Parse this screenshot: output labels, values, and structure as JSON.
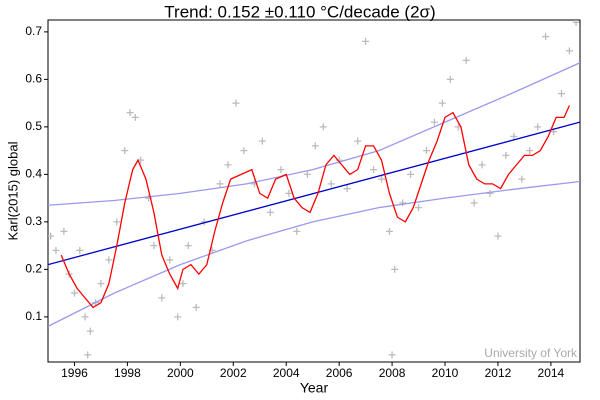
{
  "chart_data": {
    "type": "line",
    "title": "Trend: 0.152 ±0.110 °C/decade (2σ)",
    "x_label": "Year",
    "y_label": "Karl(2015) global",
    "annotation": "University of York",
    "xlim": [
      1995,
      2015.1
    ],
    "xticks": [
      1996,
      1998,
      2000,
      2002,
      2004,
      2006,
      2008,
      2010,
      2012,
      2014
    ],
    "ylim": [
      0.005,
      0.725
    ],
    "yticks": [
      0.1,
      0.2,
      0.3,
      0.4,
      0.5,
      0.6,
      0.7
    ],
    "series": [
      {
        "style": "markers",
        "color": "#bbbbbb",
        "x": [
          1995.1,
          1995.3,
          1995.6,
          1995.8,
          1996.0,
          1996.2,
          1996.4,
          1996.5,
          1996.6,
          1996.8,
          1997.0,
          1997.3,
          1997.6,
          1997.9,
          1998.1,
          1998.3,
          1998.5,
          1998.8,
          1999.0,
          1999.3,
          1999.6,
          1999.9,
          2000.1,
          2000.3,
          2000.6,
          2000.9,
          2001.2,
          2001.5,
          2001.8,
          2002.1,
          2002.4,
          2002.8,
          2003.1,
          2003.4,
          2003.8,
          2004.1,
          2004.4,
          2004.8,
          2005.1,
          2005.4,
          2005.7,
          2006.0,
          2006.3,
          2006.7,
          2007.0,
          2007.3,
          2007.6,
          2007.9,
          2008.0,
          2008.1,
          2008.4,
          2008.7,
          2009.0,
          2009.3,
          2009.6,
          2009.9,
          2010.2,
          2010.5,
          2010.8,
          2011.1,
          2011.4,
          2011.7,
          2012.0,
          2012.3,
          2012.6,
          2012.9,
          2013.2,
          2013.5,
          2013.8,
          2014.1,
          2014.4,
          2014.7,
          2014.95
        ],
        "values": [
          0.27,
          0.24,
          0.28,
          0.19,
          0.15,
          0.24,
          0.1,
          0.02,
          0.07,
          0.13,
          0.17,
          0.22,
          0.3,
          0.45,
          0.53,
          0.52,
          0.43,
          0.35,
          0.25,
          0.14,
          0.22,
          0.1,
          0.17,
          0.25,
          0.12,
          0.3,
          0.24,
          0.38,
          0.42,
          0.55,
          0.45,
          0.38,
          0.47,
          0.32,
          0.41,
          0.36,
          0.28,
          0.4,
          0.46,
          0.5,
          0.38,
          0.43,
          0.37,
          0.47,
          0.68,
          0.41,
          0.39,
          0.28,
          0.02,
          0.2,
          0.34,
          0.4,
          0.33,
          0.45,
          0.51,
          0.55,
          0.6,
          0.5,
          0.64,
          0.34,
          0.42,
          0.36,
          0.27,
          0.44,
          0.48,
          0.39,
          0.45,
          0.5,
          0.69,
          0.49,
          0.57,
          0.66,
          0.72
        ]
      },
      {
        "style": "line",
        "color": "#9999ee",
        "x": [
          1995,
          1997.5,
          2000,
          2002.5,
          2005,
          2007.5,
          2010,
          2012.5,
          2015.1
        ],
        "values": [
          0.335,
          0.345,
          0.36,
          0.38,
          0.41,
          0.45,
          0.51,
          0.57,
          0.635
        ]
      },
      {
        "style": "line",
        "color": "#9999ee",
        "x": [
          1995,
          1997.5,
          2000,
          2002.5,
          2005,
          2007.5,
          2010,
          2012.5,
          2015.1
        ],
        "values": [
          0.08,
          0.15,
          0.21,
          0.26,
          0.3,
          0.33,
          0.35,
          0.368,
          0.385
        ]
      },
      {
        "style": "line",
        "color": "#0000cc",
        "x": [
          1995,
          2015.1
        ],
        "values": [
          0.21,
          0.51
        ]
      },
      {
        "style": "line",
        "color": "#ff0000",
        "x": [
          1995.5,
          1995.8,
          1996.1,
          1996.4,
          1996.7,
          1997.0,
          1997.3,
          1997.6,
          1997.9,
          1998.2,
          1998.4,
          1998.7,
          1999.0,
          1999.3,
          1999.6,
          1999.9,
          2000.1,
          2000.4,
          2000.7,
          2001.0,
          2001.3,
          2001.6,
          2001.9,
          2002.3,
          2002.7,
          2003.0,
          2003.3,
          2003.6,
          2004.0,
          2004.3,
          2004.6,
          2004.9,
          2005.2,
          2005.5,
          2005.8,
          2006.1,
          2006.4,
          2006.7,
          2007.0,
          2007.3,
          2007.6,
          2007.9,
          2008.2,
          2008.5,
          2008.8,
          2009.1,
          2009.4,
          2009.7,
          2010.0,
          2010.3,
          2010.6,
          2010.9,
          2011.2,
          2011.5,
          2011.8,
          2012.1,
          2012.4,
          2012.7,
          2013.0,
          2013.3,
          2013.6,
          2013.9,
          2014.2,
          2014.5,
          2014.7
        ],
        "values": [
          0.23,
          0.19,
          0.16,
          0.14,
          0.12,
          0.13,
          0.17,
          0.25,
          0.34,
          0.41,
          0.43,
          0.39,
          0.32,
          0.23,
          0.19,
          0.16,
          0.2,
          0.21,
          0.19,
          0.21,
          0.28,
          0.34,
          0.39,
          0.4,
          0.41,
          0.36,
          0.35,
          0.39,
          0.4,
          0.35,
          0.33,
          0.32,
          0.36,
          0.42,
          0.44,
          0.42,
          0.4,
          0.41,
          0.46,
          0.46,
          0.43,
          0.36,
          0.31,
          0.3,
          0.33,
          0.38,
          0.43,
          0.47,
          0.52,
          0.53,
          0.5,
          0.42,
          0.39,
          0.38,
          0.38,
          0.37,
          0.4,
          0.42,
          0.44,
          0.44,
          0.45,
          0.48,
          0.52,
          0.52,
          0.545
        ]
      }
    ]
  }
}
